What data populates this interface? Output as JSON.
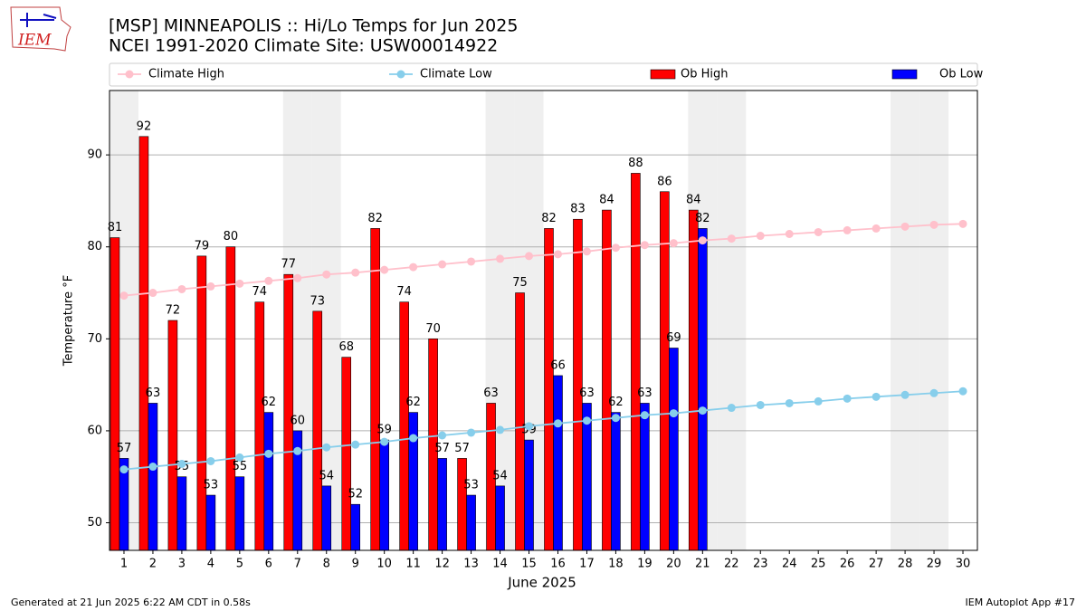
{
  "chart_data": {
    "type": "bar",
    "title": "[MSP] MINNEAPOLIS :: Hi/Lo Temps for Jun 2025",
    "subtitle": "NCEI 1991-2020 Climate Site: USW00014922",
    "xlabel": "June 2025",
    "ylabel": "Temperature °F",
    "footer_left": "Generated at 21 Jun 2025 6:22 AM CDT in 0.58s",
    "footer_right": "IEM Autoplot App #17",
    "logo": "IEM",
    "x": [
      1,
      2,
      3,
      4,
      5,
      6,
      7,
      8,
      9,
      10,
      11,
      12,
      13,
      14,
      15,
      16,
      17,
      18,
      19,
      20,
      21,
      22,
      23,
      24,
      25,
      26,
      27,
      28,
      29,
      30
    ],
    "xlim": [
      0.5,
      30.5
    ],
    "xticks": [
      1,
      2,
      3,
      4,
      5,
      6,
      7,
      8,
      9,
      10,
      11,
      12,
      13,
      14,
      15,
      16,
      17,
      18,
      19,
      20,
      21,
      22,
      23,
      24,
      25,
      26,
      27,
      28,
      29,
      30
    ],
    "ylim": [
      47,
      97
    ],
    "yticks": [
      50,
      60,
      70,
      80,
      90
    ],
    "grid": true,
    "legend": "top",
    "weekend_days": [
      1,
      7,
      8,
      14,
      15,
      21,
      22,
      28,
      29
    ],
    "series": [
      {
        "name": "Climate High",
        "type": "line",
        "color": "#ffc0cb",
        "values": [
          74.7,
          75.0,
          75.4,
          75.7,
          76.0,
          76.3,
          76.6,
          77.0,
          77.2,
          77.5,
          77.8,
          78.1,
          78.4,
          78.7,
          79.0,
          79.2,
          79.5,
          79.9,
          80.2,
          80.4,
          80.7,
          80.9,
          81.2,
          81.4,
          81.6,
          81.8,
          82.0,
          82.2,
          82.4,
          82.5
        ]
      },
      {
        "name": "Climate Low",
        "type": "line",
        "color": "#87ceeb",
        "values": [
          55.8,
          56.1,
          56.4,
          56.7,
          57.1,
          57.5,
          57.8,
          58.2,
          58.5,
          58.8,
          59.2,
          59.5,
          59.8,
          60.1,
          60.5,
          60.8,
          61.1,
          61.4,
          61.7,
          61.9,
          62.2,
          62.5,
          62.8,
          63.0,
          63.2,
          63.5,
          63.7,
          63.9,
          64.1,
          64.3
        ]
      },
      {
        "name": "Ob High",
        "type": "bar",
        "color": "#ff0000",
        "values": [
          81,
          92,
          72,
          79,
          80,
          74,
          77,
          73,
          68,
          82,
          74,
          70,
          57,
          63,
          75,
          82,
          83,
          84,
          88,
          86,
          84,
          null,
          null,
          null,
          null,
          null,
          null,
          null,
          null,
          null
        ]
      },
      {
        "name": "Ob Low",
        "type": "bar",
        "color": "#0000ff",
        "values": [
          57,
          63,
          55,
          53,
          55,
          62,
          60,
          54,
          52,
          59,
          62,
          57,
          53,
          54,
          59,
          66,
          63,
          62,
          63,
          69,
          82,
          null,
          null,
          null,
          null,
          null,
          null,
          null,
          null,
          null
        ]
      }
    ]
  }
}
